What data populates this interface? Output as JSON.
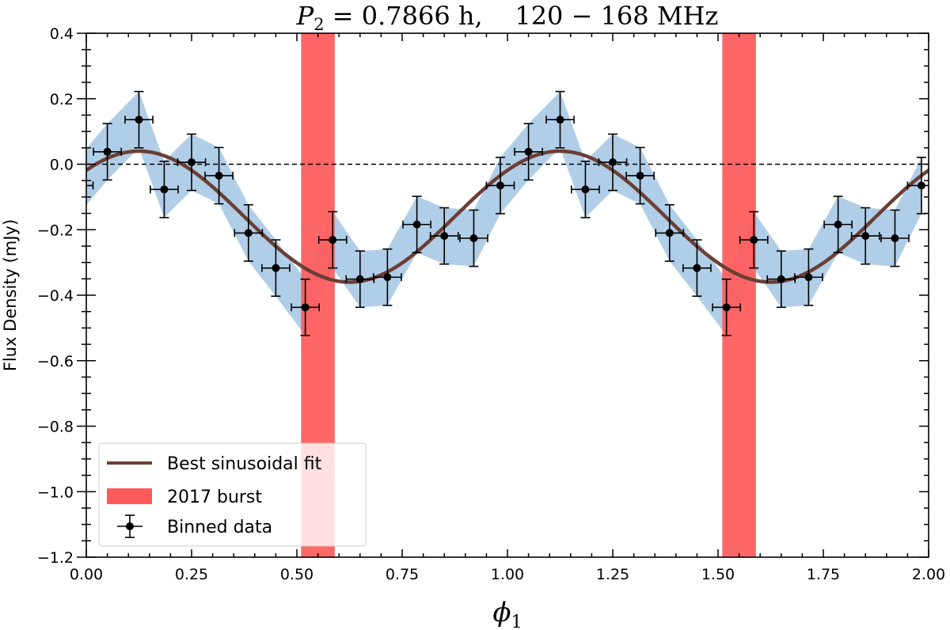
{
  "chart_data": {
    "type": "scatter",
    "title": {
      "prefix": "P",
      "subscript": "2",
      "rest": " = 0.7866 h,    120 − 168 MHz"
    },
    "xlabel": {
      "symbol": "ϕ",
      "subscript": "1"
    },
    "ylabel": "Flux Density (mJy)",
    "xlim": [
      0,
      2
    ],
    "ylim": [
      -1.2,
      0.4
    ],
    "x_ticks": [
      0,
      0.25,
      0.5,
      0.75,
      1,
      1.25,
      1.5,
      1.75,
      2
    ],
    "x_tick_labels": [
      "0.00",
      "0.25",
      "0.50",
      "0.75",
      "1.00",
      "1.25",
      "1.50",
      "1.75",
      "2.00"
    ],
    "y_ticks": [
      -1.2,
      -1.0,
      -0.8,
      -0.6,
      -0.4,
      -0.2,
      0.0,
      0.2,
      0.4
    ],
    "y_tick_labels": [
      "−1.2",
      "−1.0",
      "−0.8",
      "−0.6",
      "−0.4",
      "−0.2",
      "0.0",
      "0.2",
      "0.4"
    ],
    "zero_line": 0.0,
    "fit": {
      "name": "Best sinusoidal fit",
      "offset": -0.16,
      "amplitude": 0.2,
      "period": 1.0,
      "peak_phase": 0.125,
      "color": "#6b3e36"
    },
    "burst": {
      "name": "2017 burst",
      "intervals": [
        [
          0.51,
          0.59
        ],
        [
          1.51,
          1.59
        ]
      ],
      "color": "#ff5a5a"
    },
    "binned": {
      "name": "Binned data",
      "x_err": 0.033,
      "y_err": 0.086,
      "band_color": "#7fb0d8",
      "points": [
        [
          -0.017,
          -0.065
        ],
        [
          0.05,
          0.038
        ],
        [
          0.125,
          0.136
        ],
        [
          0.185,
          -0.077
        ],
        [
          0.25,
          0.006
        ],
        [
          0.315,
          -0.035
        ],
        [
          0.385,
          -0.21
        ],
        [
          0.45,
          -0.317
        ],
        [
          0.52,
          -0.437
        ],
        [
          0.585,
          -0.231
        ],
        [
          0.65,
          -0.351
        ],
        [
          0.715,
          -0.345
        ],
        [
          0.785,
          -0.184
        ],
        [
          0.85,
          -0.219
        ],
        [
          0.92,
          -0.226
        ],
        [
          0.983,
          -0.065
        ],
        [
          1.05,
          0.038
        ],
        [
          1.125,
          0.136
        ],
        [
          1.185,
          -0.077
        ],
        [
          1.25,
          0.006
        ],
        [
          1.315,
          -0.035
        ],
        [
          1.385,
          -0.21
        ],
        [
          1.45,
          -0.317
        ],
        [
          1.52,
          -0.437
        ],
        [
          1.585,
          -0.231
        ],
        [
          1.65,
          -0.351
        ],
        [
          1.715,
          -0.345
        ],
        [
          1.785,
          -0.184
        ],
        [
          1.85,
          -0.219
        ],
        [
          1.92,
          -0.226
        ],
        [
          1.983,
          -0.065
        ]
      ]
    },
    "legend": {
      "position": "lower-left",
      "entries": [
        "Best sinusoidal fit",
        "2017 burst",
        "Binned data"
      ]
    }
  }
}
